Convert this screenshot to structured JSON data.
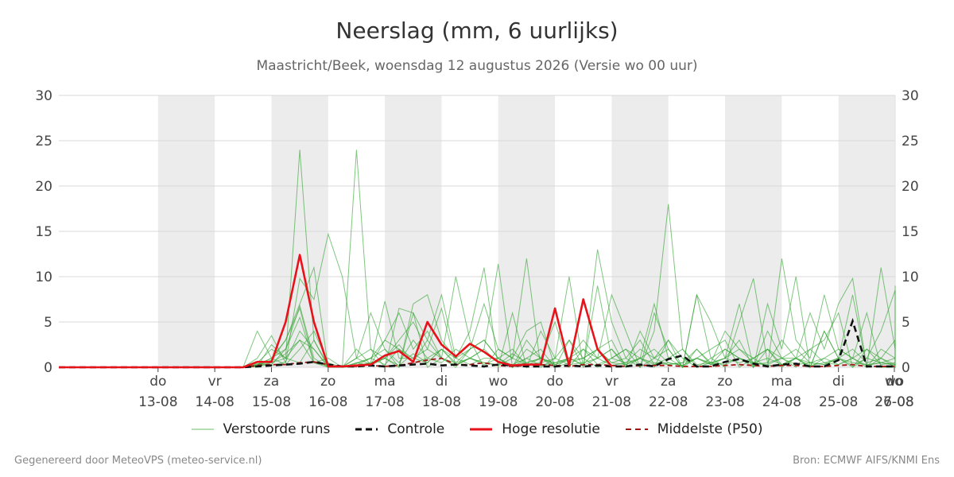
{
  "title": "Neerslag (mm, 6 uurlijks)",
  "subtitle": "Maastricht/Beek, woensdag 12 augustus 2026 (Versie wo 00 uur)",
  "footer": {
    "left": "Gegenereerd door MeteoVPS (meteo-service.nl)",
    "right": "Bron: ECMWF AIFS/KNMI Ens"
  },
  "colors": {
    "ensemble": "#2ca02c",
    "controle": "#111111",
    "hoge_resolutie": "#e8121b",
    "p50": "#a31515",
    "weekend_band": "#ececec",
    "grid": "#d8d8d8"
  },
  "chart_data": {
    "type": "line",
    "xlabel": "",
    "ylabel": "",
    "ylim": [
      0,
      30
    ],
    "yticks": [
      0,
      5,
      10,
      15,
      20,
      25,
      30
    ],
    "y_axis_both_sides": true,
    "x_range_days": [
      -0.75,
      14
    ],
    "x_step_hours": 6,
    "shaded_day_bands": [
      [
        1,
        2
      ],
      [
        3,
        4
      ],
      [
        5,
        6
      ],
      [
        7,
        8
      ],
      [
        9,
        10
      ],
      [
        11,
        12
      ],
      [
        13,
        14
      ]
    ],
    "x_ticks": [
      {
        "day": 1,
        "weekday": "do",
        "date": "13-08"
      },
      {
        "day": 2,
        "weekday": "vr",
        "date": "14-08"
      },
      {
        "day": 3,
        "weekday": "za",
        "date": "15-08"
      },
      {
        "day": 4,
        "weekday": "zo",
        "date": "16-08"
      },
      {
        "day": 5,
        "weekday": "ma",
        "date": "17-08"
      },
      {
        "day": 6,
        "weekday": "di",
        "date": "18-08"
      },
      {
        "day": 7,
        "weekday": "wo",
        "date": "19-08"
      },
      {
        "day": 8,
        "weekday": "do",
        "date": "20-08"
      },
      {
        "day": 9,
        "weekday": "vr",
        "date": "21-08"
      },
      {
        "day": 10,
        "weekday": "za",
        "date": "22-08"
      },
      {
        "day": 11,
        "weekday": "zo",
        "date": "23-08"
      },
      {
        "day": 12,
        "weekday": "ma",
        "date": "24-08"
      },
      {
        "day": 13,
        "weekday": "di",
        "date": "25-08"
      },
      {
        "day": 14,
        "weekday": "wo",
        "date": "26-08"
      },
      {
        "day": 15,
        "weekday": "do",
        "date": "27-08"
      }
    ],
    "legend": [
      {
        "label": "Verstoorde runs",
        "style": "ensemble"
      },
      {
        "label": "Controle",
        "style": "controle"
      },
      {
        "label": "Hoge resolutie",
        "style": "hoge_resolutie"
      },
      {
        "label": "Middelste (P50)",
        "style": "p50"
      }
    ],
    "series": [
      {
        "name": "Hoge resolutie",
        "style": "hoge_resolutie",
        "values": [
          0,
          0,
          0,
          0,
          0,
          0,
          0,
          0,
          0,
          0,
          0,
          0,
          0,
          0,
          0.6,
          0.6,
          5,
          12.4,
          5,
          0.1,
          0.1,
          0.2,
          0.3,
          1.3,
          1.8,
          0.6,
          5,
          2.5,
          1.2,
          2.6,
          1.7,
          0.6,
          0.2,
          0.3,
          0.3,
          6.5,
          0.2,
          7.5,
          2,
          0.1
        ]
      },
      {
        "name": "Controle",
        "style": "controle",
        "values": [
          0,
          0,
          0,
          0,
          0,
          0,
          0,
          0,
          0,
          0,
          0,
          0,
          0,
          0,
          0.1,
          0.2,
          0.3,
          0.4,
          0.6,
          0.3,
          0.1,
          0.1,
          0.2,
          0.1,
          0.2,
          0.3,
          0.4,
          0.2,
          0.3,
          0.2,
          0.1,
          0.3,
          0.2,
          0.1,
          0.1,
          0.1,
          0.2,
          0.1,
          0.2,
          0.1,
          0.1,
          0.3,
          0.1,
          0.9,
          1.3,
          0.1,
          0.1,
          0.6,
          0.9,
          0.4,
          0.1,
          0.3,
          0.4,
          0.1,
          0.1,
          0.8,
          5.1,
          0.1,
          0.1,
          0.1,
          0.2
        ]
      },
      {
        "name": "Middelste (P50)",
        "style": "p50",
        "values": [
          0,
          0,
          0,
          0,
          0,
          0,
          0,
          0,
          0,
          0,
          0,
          0,
          0,
          0,
          0.2,
          0.3,
          0.3,
          0.5,
          0.6,
          0.3,
          0.1,
          0.1,
          0.2,
          0.1,
          0.2,
          0.5,
          0.8,
          1,
          0.3,
          0.3,
          0.5,
          0.2,
          0.1,
          0.2,
          0.3,
          0.2,
          0.1,
          0.3,
          0.3,
          0.2,
          0.1,
          0.2,
          0.2,
          0.2,
          0.1,
          0.1,
          0.1,
          0.2,
          0.3,
          0.2,
          0.1,
          0.2,
          0.2,
          0.1,
          0.1,
          0.2,
          0.3,
          0.1,
          0.1,
          0.1,
          0.1
        ]
      },
      {
        "name": "",
        "style": "ensemble",
        "values": [
          0,
          0,
          0,
          0,
          0,
          0,
          0,
          0,
          0,
          0,
          0,
          0,
          0,
          0,
          0.5,
          2,
          1,
          24,
          3,
          0,
          0,
          1,
          6,
          2,
          0,
          7,
          8,
          3,
          1,
          4,
          11,
          0,
          6,
          0,
          4,
          1,
          10,
          0,
          13,
          5,
          1,
          0,
          4,
          18,
          2,
          0,
          0.5,
          4,
          2,
          1,
          0,
          12,
          3,
          1,
          8,
          2,
          1,
          6,
          0,
          0,
          9
        ]
      },
      {
        "name": "",
        "style": "ensemble",
        "values": [
          0,
          0,
          0,
          0,
          0,
          0,
          0,
          0,
          0,
          0,
          0,
          0,
          0,
          0,
          4,
          1,
          3,
          7,
          11,
          0,
          0,
          24,
          2,
          1,
          0,
          6,
          3,
          8,
          1,
          2,
          7,
          2,
          1,
          12,
          0,
          1,
          3,
          0,
          9,
          1,
          2,
          0,
          6,
          2,
          0,
          8,
          5,
          1,
          3,
          0,
          7,
          2,
          10,
          0,
          4,
          1,
          8,
          0,
          11,
          2,
          1
        ]
      },
      {
        "name": "",
        "style": "ensemble",
        "values": [
          0,
          0,
          0,
          0,
          0,
          0,
          0,
          0,
          0,
          0,
          0,
          0,
          0,
          0,
          1,
          3.5,
          0.5,
          9.8,
          7.5,
          14.7,
          10,
          1,
          2,
          0,
          6.5,
          6,
          0,
          1,
          10,
          3,
          0,
          2,
          1,
          4,
          5,
          0,
          1,
          3,
          1,
          2,
          0,
          4,
          1,
          2,
          0,
          8,
          1,
          0,
          5,
          9.8,
          0.5,
          3,
          1,
          6,
          2,
          7,
          9.8,
          0,
          2,
          1,
          0
        ]
      },
      {
        "name": "",
        "style": "ensemble",
        "values": [
          0,
          0,
          0,
          0,
          0,
          0,
          0,
          0,
          0,
          0,
          0,
          0,
          0,
          0,
          0.3,
          1,
          2,
          6.8,
          1,
          0,
          0,
          0.5,
          1,
          3,
          6,
          2,
          4,
          1,
          0.5,
          2,
          3,
          1,
          0,
          1,
          2,
          0,
          0.5,
          1,
          2,
          3,
          0,
          1,
          7,
          1,
          0,
          2,
          0.5,
          1,
          7,
          0,
          4,
          1,
          0,
          2,
          3,
          6,
          0,
          1,
          4,
          8.5,
          2
        ]
      },
      {
        "name": "",
        "style": "ensemble",
        "values": [
          0,
          0,
          0,
          0,
          0,
          0,
          0,
          0,
          0,
          0,
          0,
          0,
          0,
          0,
          0.2,
          0.8,
          3,
          6.5,
          0.5,
          1,
          0,
          2,
          0.3,
          1,
          3,
          5,
          2,
          6.5,
          0.2,
          1,
          2,
          11.4,
          0,
          3,
          1,
          5,
          0,
          2,
          1,
          8,
          4,
          0,
          1,
          3,
          0,
          1,
          2,
          3,
          0,
          1,
          2,
          0,
          1,
          0,
          4,
          1,
          0,
          2,
          1,
          0,
          3
        ]
      },
      {
        "name": "",
        "style": "ensemble",
        "values": [
          0,
          0,
          0,
          0,
          0,
          0,
          0,
          0,
          0,
          0,
          0,
          0,
          0,
          0,
          0.1,
          0.5,
          1,
          3,
          2,
          0,
          0,
          0.2,
          0.5,
          7.3,
          1,
          1,
          2,
          1,
          0,
          2,
          3,
          1,
          0,
          2,
          1,
          0,
          3,
          1,
          0,
          1,
          2,
          1,
          0,
          3,
          1,
          0,
          1,
          2,
          1,
          0,
          2,
          1,
          1,
          0,
          1,
          2,
          1,
          0,
          1,
          3,
          1
        ]
      },
      {
        "name": "",
        "style": "ensemble",
        "values": [
          0,
          0,
          0,
          0,
          0,
          0,
          0,
          0,
          0,
          0,
          0,
          0,
          0,
          0,
          0.4,
          0.2,
          0.6,
          4,
          2,
          0.1,
          0,
          0.4,
          1,
          0.3,
          2,
          1,
          0.5,
          2,
          1,
          0.3,
          1,
          1,
          0.2,
          0.5,
          1,
          0.3,
          1,
          0.2,
          1,
          2,
          0.3,
          1,
          2,
          0.5,
          0.2,
          1,
          0.3,
          2,
          1,
          0.5,
          1,
          0.3,
          1,
          2,
          0.5,
          1,
          0.2,
          1,
          0.5,
          0.2,
          1
        ]
      },
      {
        "name": "",
        "style": "ensemble",
        "values": [
          0,
          0,
          0,
          0,
          0,
          0,
          0,
          0,
          0,
          0,
          0,
          0,
          0,
          0,
          0.1,
          2.5,
          1,
          0.5,
          3,
          0.2,
          0.1,
          1,
          0.3,
          3,
          2,
          0.6,
          3,
          1,
          0.2,
          1,
          0.5,
          0.3,
          1.5,
          0.5,
          1,
          0.3,
          0.8,
          1,
          2,
          0.5,
          1,
          3,
          0.3,
          1,
          2,
          0.3,
          0.5,
          1,
          2,
          0.5,
          0.3,
          1,
          2,
          0.5,
          1,
          0.3,
          1,
          2,
          0.3,
          0.5,
          1.5
        ]
      },
      {
        "name": "",
        "style": "ensemble",
        "values": [
          0,
          0,
          0,
          0,
          0,
          0,
          0,
          0,
          0,
          0,
          0,
          0,
          0,
          0,
          0.2,
          1,
          0.3,
          2,
          4,
          0.5,
          0,
          0.2,
          1,
          2,
          0.5,
          3,
          1,
          0.5,
          2,
          1,
          0.3,
          1,
          2,
          0.2,
          1,
          0.5,
          1,
          2,
          0.3,
          1,
          0.5,
          2,
          1,
          0.3,
          0.5,
          2,
          0.3,
          1,
          0.5,
          1,
          2,
          0.3,
          1,
          0.5,
          0.3,
          1,
          2,
          0.5,
          1,
          0.3,
          0.5
        ]
      },
      {
        "name": "",
        "style": "ensemble",
        "values": [
          0,
          0,
          0,
          0,
          0,
          0,
          0,
          0,
          0,
          0,
          0,
          0,
          0,
          0,
          0.1,
          0.3,
          2,
          5.5,
          0.5,
          0,
          0,
          0.1,
          0.5,
          1,
          0.2,
          1.5,
          0.5,
          2,
          0.3,
          1,
          0.5,
          0.2,
          1,
          0.3,
          0.5,
          1,
          0.3,
          0.5,
          1,
          0.2,
          0.5,
          1,
          0.3,
          0.5,
          0.2,
          1,
          0.5,
          0.3,
          1,
          0.5,
          0.2,
          0.3,
          1,
          0.2,
          0.5,
          0.3,
          1,
          0.2,
          0.5,
          0.3,
          0.2
        ]
      },
      {
        "name": "",
        "style": "ensemble",
        "values": [
          0,
          0,
          0,
          0,
          0,
          0,
          0,
          0,
          0,
          0,
          0,
          0,
          0,
          0,
          0.3,
          0.5,
          1.5,
          3,
          0.5,
          0.2,
          0,
          0.5,
          0.2,
          1,
          2.5,
          0.5,
          1,
          2,
          0.5,
          1,
          2,
          0.5,
          0.3,
          1,
          0.2,
          0.5,
          1,
          0.3,
          2,
          0.5,
          0.3,
          1,
          0.5,
          0.3,
          0.5,
          1,
          0.3,
          0.5,
          1,
          0.3,
          0.5,
          1,
          0.3,
          0.5,
          0.3,
          1,
          0.5,
          0.3,
          0.5,
          1,
          0.3
        ]
      }
    ]
  }
}
